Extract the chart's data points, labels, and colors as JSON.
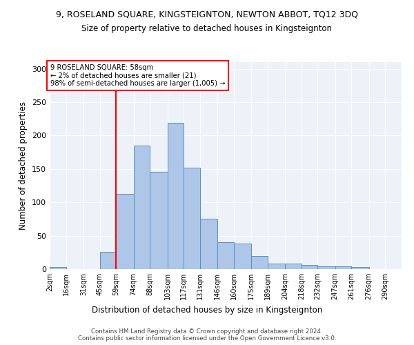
{
  "title1": "9, ROSELAND SQUARE, KINGSTEIGNTON, NEWTON ABBOT, TQ12 3DQ",
  "title2": "Size of property relative to detached houses in Kingsteignton",
  "xlabel": "Distribution of detached houses by size in Kingsteignton",
  "ylabel": "Number of detached properties",
  "bin_labels": [
    "2sqm",
    "16sqm",
    "31sqm",
    "45sqm",
    "59sqm",
    "74sqm",
    "88sqm",
    "103sqm",
    "117sqm",
    "131sqm",
    "146sqm",
    "160sqm",
    "175sqm",
    "189sqm",
    "204sqm",
    "218sqm",
    "232sqm",
    "247sqm",
    "261sqm",
    "276sqm",
    "290sqm"
  ],
  "bin_edges": [
    2,
    16,
    31,
    45,
    59,
    74,
    88,
    103,
    117,
    131,
    146,
    160,
    175,
    189,
    204,
    218,
    232,
    247,
    261,
    276,
    290
  ],
  "bar_heights": [
    3,
    0,
    0,
    26,
    113,
    185,
    146,
    219,
    152,
    75,
    40,
    38,
    20,
    8,
    8,
    6,
    4,
    4,
    3,
    0
  ],
  "bar_color": "#aec6e8",
  "bar_edge_color": "#5a8fc2",
  "vline_x": 59,
  "vline_color": "red",
  "annotation_lines": [
    "9 ROSELAND SQUARE: 58sqm",
    "← 2% of detached houses are smaller (21)",
    "98% of semi-detached houses are larger (1,005) →"
  ],
  "annotation_box_color": "red",
  "ylim": [
    0,
    310
  ],
  "yticks": [
    0,
    50,
    100,
    150,
    200,
    250,
    300
  ],
  "footer": "Contains HM Land Registry data © Crown copyright and database right 2024.\nContains public sector information licensed under the Open Government Licence v3.0.",
  "bg_color": "#edf2f9"
}
